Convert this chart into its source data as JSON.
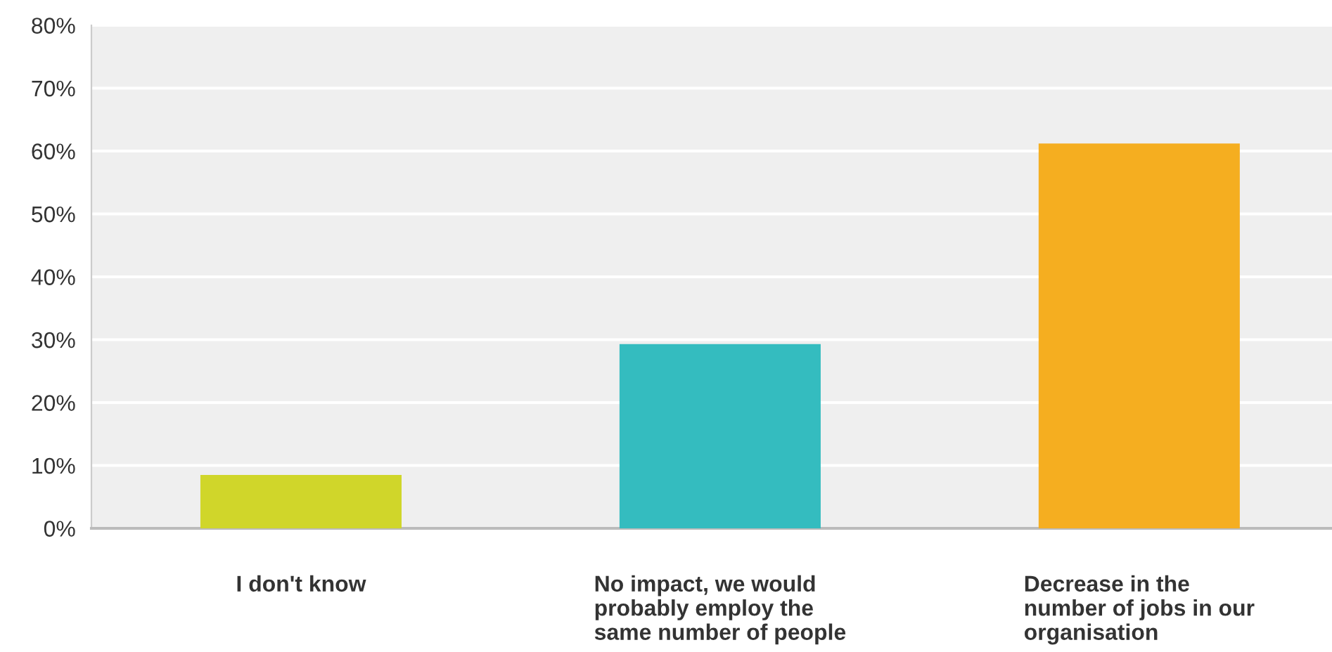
{
  "chart_data": {
    "type": "bar",
    "categories": [
      "I don't know",
      "No impact, we would\nprobably employ the\nsame number of people",
      "Decrease in the\nnumber of jobs in our\norganisation"
    ],
    "values": [
      8.5,
      29.3,
      61.2
    ],
    "colors": [
      "#d0d62a",
      "#34bcbf",
      "#f5ae20"
    ],
    "ylim": [
      0,
      80
    ],
    "yticks": [
      {
        "value": 0,
        "label": "0%"
      },
      {
        "value": 10,
        "label": "10%"
      },
      {
        "value": 20,
        "label": "20%"
      },
      {
        "value": 30,
        "label": "30%"
      },
      {
        "value": 40,
        "label": "40%"
      },
      {
        "value": 50,
        "label": "50%"
      },
      {
        "value": 60,
        "label": "60%"
      },
      {
        "value": 70,
        "label": "70%"
      },
      {
        "value": 80,
        "label": "80%"
      }
    ],
    "grid": "y",
    "legend": false
  }
}
